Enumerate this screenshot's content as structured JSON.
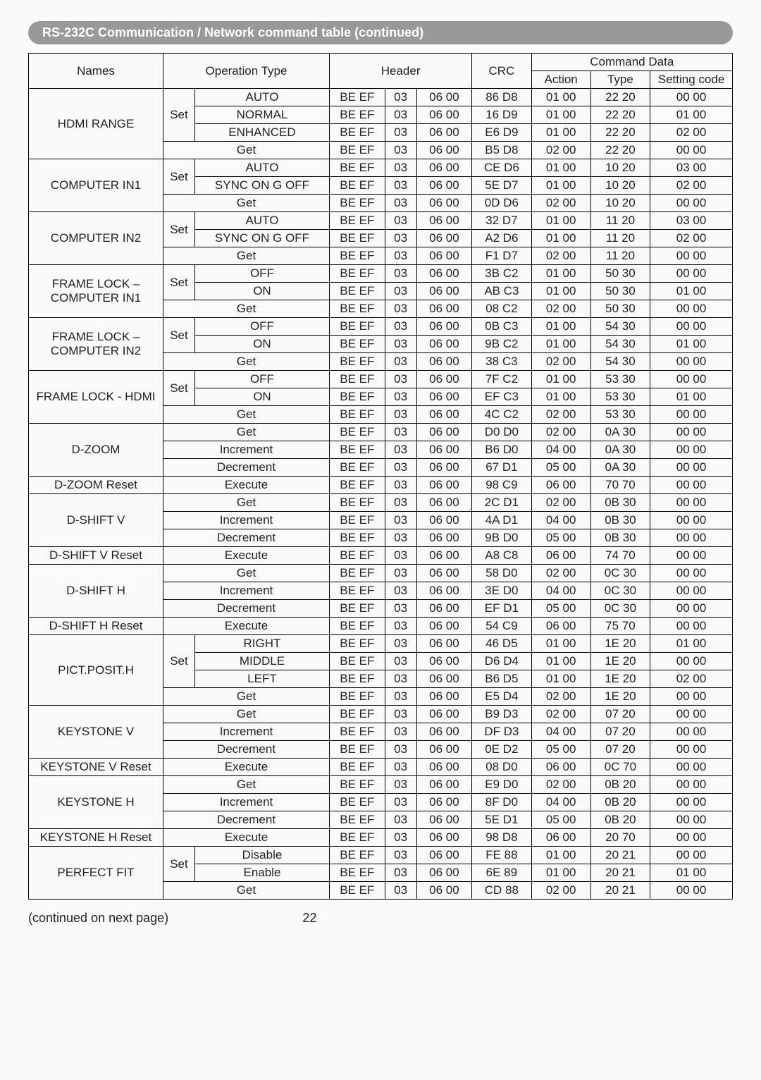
{
  "title": "RS-232C Communication / Network command table (continued)",
  "headers": {
    "names": "Names",
    "operation_type": "Operation Type",
    "header": "Header",
    "crc": "CRC",
    "command_data": "Command Data",
    "action": "Action",
    "type": "Type",
    "setting_code": "Setting code"
  },
  "rows": [
    {
      "name": "HDMI RANGE",
      "setget": "Set",
      "op": "AUTO",
      "h1": "BE EF",
      "h2": "03",
      "h3": "06 00",
      "crc": "86 D8",
      "act": "01 00",
      "typ": "22 20",
      "set": "00 00"
    },
    {
      "name": "",
      "setget": "",
      "op": "NORMAL",
      "h1": "BE EF",
      "h2": "03",
      "h3": "06 00",
      "crc": "16 D9",
      "act": "01 00",
      "typ": "22 20",
      "set": "01 00"
    },
    {
      "name": "",
      "setget": "",
      "op": "ENHANCED",
      "h1": "BE EF",
      "h2": "03",
      "h3": "06 00",
      "crc": "E6 D9",
      "act": "01 00",
      "typ": "22 20",
      "set": "02 00"
    },
    {
      "name": "",
      "setget": "",
      "op": "Get",
      "h1": "BE EF",
      "h2": "03",
      "h3": "06 00",
      "crc": "B5 D8",
      "act": "02 00",
      "typ": "22 20",
      "set": "00 00"
    },
    {
      "name": "COMPUTER IN1",
      "setget": "Set",
      "op": "AUTO",
      "h1": "BE  EF",
      "h2": "03",
      "h3": "06  00",
      "crc": "CE  D6",
      "act": "01  00",
      "typ": "10  20",
      "set": "03  00"
    },
    {
      "name": "",
      "setget": "",
      "op": "SYNC ON G OFF",
      "h1": "BE  EF",
      "h2": "03",
      "h3": "06  00",
      "crc": "5E  D7",
      "act": "01  00",
      "typ": "10  20",
      "set": "02  00"
    },
    {
      "name": "",
      "setget": "",
      "op": "Get",
      "h1": "BE  EF",
      "h2": "03",
      "h3": "06  00",
      "crc": "0D  D6",
      "act": "02  00",
      "typ": "10  20",
      "set": "00  00"
    },
    {
      "name": "COMPUTER IN2",
      "setget": "Set",
      "op": "AUTO",
      "h1": "BE  EF",
      "h2": "03",
      "h3": "06  00",
      "crc": "32  D7",
      "act": "01  00",
      "typ": "11  20",
      "set": "03  00"
    },
    {
      "name": "",
      "setget": "",
      "op": "SYNC ON G OFF",
      "h1": "BE  EF",
      "h2": "03",
      "h3": "06  00",
      "crc": "A2  D6",
      "act": "01  00",
      "typ": "11  20",
      "set": "02  00"
    },
    {
      "name": "",
      "setget": "",
      "op": "Get",
      "h1": "BE  EF",
      "h2": "03",
      "h3": "06  00",
      "crc": "F1  D7",
      "act": "02  00",
      "typ": "11  20",
      "set": "00  00"
    },
    {
      "name": "FRAME LOCK – COMPUTER IN1",
      "setget": "Set",
      "op": "OFF",
      "h1": "BE  EF",
      "h2": "03",
      "h3": "06  00",
      "crc": "3B  C2",
      "act": "01  00",
      "typ": "50  30",
      "set": "00  00"
    },
    {
      "name": "",
      "setget": "",
      "op": "ON",
      "h1": "BE  EF",
      "h2": "03",
      "h3": "06  00",
      "crc": "AB  C3",
      "act": "01  00",
      "typ": "50  30",
      "set": "01  00"
    },
    {
      "name": "",
      "setget": "",
      "op": "Get",
      "h1": "BE  EF",
      "h2": "03",
      "h3": "06  00",
      "crc": "08  C2",
      "act": "02  00",
      "typ": "50  30",
      "set": "00  00"
    },
    {
      "name": "FRAME LOCK – COMPUTER IN2",
      "setget": "Set",
      "op": "OFF",
      "h1": "BE  EF",
      "h2": "03",
      "h3": "06  00",
      "crc": "0B  C3",
      "act": "01  00",
      "typ": "54  30",
      "set": "00  00"
    },
    {
      "name": "",
      "setget": "",
      "op": "ON",
      "h1": "BE  EF",
      "h2": "03",
      "h3": "06  00",
      "crc": "9B  C2",
      "act": "01  00",
      "typ": "54  30",
      "set": "01  00"
    },
    {
      "name": "",
      "setget": "",
      "op": "Get",
      "h1": "BE  EF",
      "h2": "03",
      "h3": "06  00",
      "crc": "38  C3",
      "act": "02  00",
      "typ": "54  30",
      "set": "00  00"
    },
    {
      "name": "FRAME LOCK - HDMI",
      "setget": "Set",
      "op": "OFF",
      "h1": "BE EF",
      "h2": "03",
      "h3": "06 00",
      "crc": "7F C2",
      "act": "01 00",
      "typ": "53 30",
      "set": "00 00"
    },
    {
      "name": "",
      "setget": "",
      "op": "ON",
      "h1": "BE EF",
      "h2": "03",
      "h3": "06 00",
      "crc": "EF C3",
      "act": "01 00",
      "typ": "53 30",
      "set": "01 00"
    },
    {
      "name": "",
      "setget": "",
      "op": "Get",
      "h1": "BE EF",
      "h2": "03",
      "h3": "06 00",
      "crc": "4C C2",
      "act": "02 00",
      "typ": "53 30",
      "set": "00 00"
    },
    {
      "name": "D-ZOOM",
      "setget": "",
      "op": "Get",
      "h1": "BE  EF",
      "h2": "03",
      "h3": "06  00",
      "crc": "D0  D0",
      "act": "02  00",
      "typ": "0A  30",
      "set": "00  00"
    },
    {
      "name": "",
      "setget": "",
      "op": "Increment",
      "h1": "BE  EF",
      "h2": "03",
      "h3": "06  00",
      "crc": "B6  D0",
      "act": "04  00",
      "typ": "0A  30",
      "set": "00  00"
    },
    {
      "name": "",
      "setget": "",
      "op": "Decrement",
      "h1": "BE  EF",
      "h2": "03",
      "h3": "06  00",
      "crc": "67  D1",
      "act": "05  00",
      "typ": "0A  30",
      "set": "00  00"
    },
    {
      "name": "D-ZOOM Reset",
      "setget": "",
      "op": "Execute",
      "h1": "BE  EF",
      "h2": "03",
      "h3": "06  00",
      "crc": "98  C9",
      "act": "06  00",
      "typ": "70  70",
      "set": "00  00"
    },
    {
      "name": "D-SHIFT V",
      "setget": "",
      "op": "Get",
      "h1": "BE  EF",
      "h2": "03",
      "h3": "06  00",
      "crc": "2C  D1",
      "act": "02  00",
      "typ": "0B  30",
      "set": "00  00"
    },
    {
      "name": "",
      "setget": "",
      "op": "Increment",
      "h1": "BE  EF",
      "h2": "03",
      "h3": "06  00",
      "crc": "4A  D1",
      "act": "04  00",
      "typ": "0B  30",
      "set": "00  00"
    },
    {
      "name": "",
      "setget": "",
      "op": "Decrement",
      "h1": "BE  EF",
      "h2": "03",
      "h3": "06  00",
      "crc": "9B  D0",
      "act": "05  00",
      "typ": "0B  30",
      "set": "00  00"
    },
    {
      "name": "D-SHIFT V Reset",
      "setget": "",
      "op": "Execute",
      "h1": "BE  EF",
      "h2": "03",
      "h3": "06  00",
      "crc": "A8  C8",
      "act": "06  00",
      "typ": "74  70",
      "set": "00  00"
    },
    {
      "name": "D-SHIFT H",
      "setget": "",
      "op": "Get",
      "h1": "BE  EF",
      "h2": "03",
      "h3": "06  00",
      "crc": "58  D0",
      "act": "02  00",
      "typ": "0C  30",
      "set": "00  00"
    },
    {
      "name": "",
      "setget": "",
      "op": "Increment",
      "h1": "BE  EF",
      "h2": "03",
      "h3": "06  00",
      "crc": "3E  D0",
      "act": "04  00",
      "typ": "0C 30",
      "set": "00  00"
    },
    {
      "name": "",
      "setget": "",
      "op": "Decrement",
      "h1": "BE  EF",
      "h2": "03",
      "h3": "06  00",
      "crc": "EF  D1",
      "act": "05  00",
      "typ": "0C  30",
      "set": "00  00"
    },
    {
      "name": "D-SHIFT H Reset",
      "setget": "",
      "op": "Execute",
      "h1": "BE  EF",
      "h2": "03",
      "h3": "06  00",
      "crc": "54  C9",
      "act": "06  00",
      "typ": "75  70",
      "set": "00  00"
    },
    {
      "name": "PICT.POSIT.H",
      "setget": "Set",
      "op": "RIGHT",
      "h1": "BE  EF",
      "h2": "03",
      "h3": "06  00",
      "crc": "46  D5",
      "act": "01  00",
      "typ": "1E  20",
      "set": "01  00"
    },
    {
      "name": "",
      "setget": "",
      "op": "MIDDLE",
      "h1": "BE  EF",
      "h2": "03",
      "h3": "06  00",
      "crc": "D6  D4",
      "act": "01  00",
      "typ": "1E  20",
      "set": "00  00"
    },
    {
      "name": "",
      "setget": "",
      "op": "LEFT",
      "h1": "BE  EF",
      "h2": "03",
      "h3": "06  00",
      "crc": "B6  D5",
      "act": "01  00",
      "typ": "1E  20",
      "set": "02  00"
    },
    {
      "name": "",
      "setget": "",
      "op": "Get",
      "h1": "BE  EF",
      "h2": "03",
      "h3": "06  00",
      "crc": "E5  D4",
      "act": "02  00",
      "typ": "1E  20",
      "set": "00  00"
    },
    {
      "name": "KEYSTONE V",
      "setget": "",
      "op": "Get",
      "h1": "BE  EF",
      "h2": "03",
      "h3": "06  00",
      "crc": "B9  D3",
      "act": "02  00",
      "typ": "07  20",
      "set": "00  00"
    },
    {
      "name": "",
      "setget": "",
      "op": "Increment",
      "h1": "BE  EF",
      "h2": "03",
      "h3": "06  00",
      "crc": "DF  D3",
      "act": "04  00",
      "typ": "07  20",
      "set": "00  00"
    },
    {
      "name": "",
      "setget": "",
      "op": "Decrement",
      "h1": "BE  EF",
      "h2": "03",
      "h3": "06  00",
      "crc": "0E  D2",
      "act": "05  00",
      "typ": "07  20",
      "set": "00  00"
    },
    {
      "name": "KEYSTONE V Reset",
      "setget": "",
      "op": "Execute",
      "h1": "BE  EF",
      "h2": "03",
      "h3": "06  00",
      "crc": "08  D0",
      "act": "06  00",
      "typ": "0C  70",
      "set": "00  00"
    },
    {
      "name": "KEYSTONE H",
      "setget": "",
      "op": "Get",
      "h1": "BE  EF",
      "h2": "03",
      "h3": "06  00",
      "crc": "E9  D0",
      "act": "02  00",
      "typ": "0B  20",
      "set": "00  00"
    },
    {
      "name": "",
      "setget": "",
      "op": "Increment",
      "h1": "BE  EF",
      "h2": "03",
      "h3": "06  00",
      "crc": "8F  D0",
      "act": "04  00",
      "typ": "0B  20",
      "set": "00  00"
    },
    {
      "name": "",
      "setget": "",
      "op": "Decrement",
      "h1": "BE  EF",
      "h2": "03",
      "h3": "06  00",
      "crc": "5E  D1",
      "act": "05  00",
      "typ": "0B  20",
      "set": "00  00"
    },
    {
      "name": "KEYSTONE H Reset",
      "setget": "",
      "op": "Execute",
      "h1": "BE  EF",
      "h2": "03",
      "h3": "06  00",
      "crc": "98  D8",
      "act": "06  00",
      "typ": "20  70",
      "set": "00  00"
    },
    {
      "name": "PERFECT FIT",
      "setget": "Set",
      "op": "Disable",
      "h1": "BE  EF",
      "h2": "03",
      "h3": "06  00",
      "crc": "FE  88",
      "act": "01  00",
      "typ": "20  21",
      "set": "00  00"
    },
    {
      "name": "",
      "setget": "",
      "op": "Enable",
      "h1": "BE  EF",
      "h2": "03",
      "h3": "06  00",
      "crc": "6E  89",
      "act": "01  00",
      "typ": "20  21",
      "set": "01  00"
    },
    {
      "name": "",
      "setget": "",
      "op": "Get",
      "h1": "BE  EF",
      "h2": "03",
      "h3": "06  00",
      "crc": "CD  88",
      "act": "02  00",
      "typ": "20  21",
      "set": "00  00"
    }
  ],
  "footer": {
    "continued": "(continued on next page)",
    "page": "22"
  },
  "groups": [
    {
      "name": "HDMI RANGE",
      "name_span": 4,
      "set_span": 3,
      "has_set": true
    },
    {
      "name": "COMPUTER IN1",
      "name_span": 3,
      "set_span": 2,
      "has_set": true
    },
    {
      "name": "COMPUTER IN2",
      "name_span": 3,
      "set_span": 2,
      "has_set": true
    },
    {
      "name": "FRAME LOCK – COMPUTER IN1",
      "name_span": 3,
      "set_span": 2,
      "has_set": true
    },
    {
      "name": "FRAME LOCK – COMPUTER IN2",
      "name_span": 3,
      "set_span": 2,
      "has_set": true
    },
    {
      "name": "FRAME LOCK - HDMI",
      "name_span": 3,
      "set_span": 2,
      "has_set": true
    },
    {
      "name": "D-ZOOM",
      "name_span": 3,
      "set_span": 0,
      "has_set": false
    },
    {
      "name": "D-ZOOM Reset",
      "name_span": 1,
      "set_span": 0,
      "has_set": false
    },
    {
      "name": "D-SHIFT V",
      "name_span": 3,
      "set_span": 0,
      "has_set": false
    },
    {
      "name": "D-SHIFT V Reset",
      "name_span": 1,
      "set_span": 0,
      "has_set": false
    },
    {
      "name": "D-SHIFT H",
      "name_span": 3,
      "set_span": 0,
      "has_set": false
    },
    {
      "name": "D-SHIFT H Reset",
      "name_span": 1,
      "set_span": 0,
      "has_set": false
    },
    {
      "name": "PICT.POSIT.H",
      "name_span": 4,
      "set_span": 3,
      "has_set": true
    },
    {
      "name": "KEYSTONE V",
      "name_span": 3,
      "set_span": 0,
      "has_set": false
    },
    {
      "name": "KEYSTONE V Reset",
      "name_span": 1,
      "set_span": 0,
      "has_set": false
    },
    {
      "name": "KEYSTONE H",
      "name_span": 3,
      "set_span": 0,
      "has_set": false
    },
    {
      "name": "KEYSTONE H Reset",
      "name_span": 1,
      "set_span": 0,
      "has_set": false
    },
    {
      "name": "PERFECT FIT",
      "name_span": 3,
      "set_span": 2,
      "has_set": true
    }
  ]
}
